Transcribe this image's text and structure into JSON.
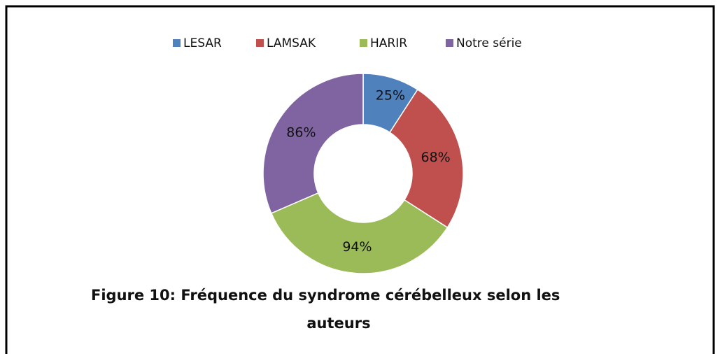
{
  "chart_data": {
    "type": "donut",
    "categories": [
      "LESAR",
      "LAMSAK",
      "HARIR",
      "Notre série"
    ],
    "values": [
      25,
      68,
      94,
      86
    ],
    "value_labels": [
      "25%",
      "68%",
      "94%",
      "86%"
    ],
    "colors": [
      "#4f81bd",
      "#c0504d",
      "#9bbb59",
      "#8064a2"
    ],
    "legend": "top",
    "caption": [
      "Figure 10: Fréquence  du syndrome cérébelleux selon les",
      "auteurs"
    ]
  }
}
